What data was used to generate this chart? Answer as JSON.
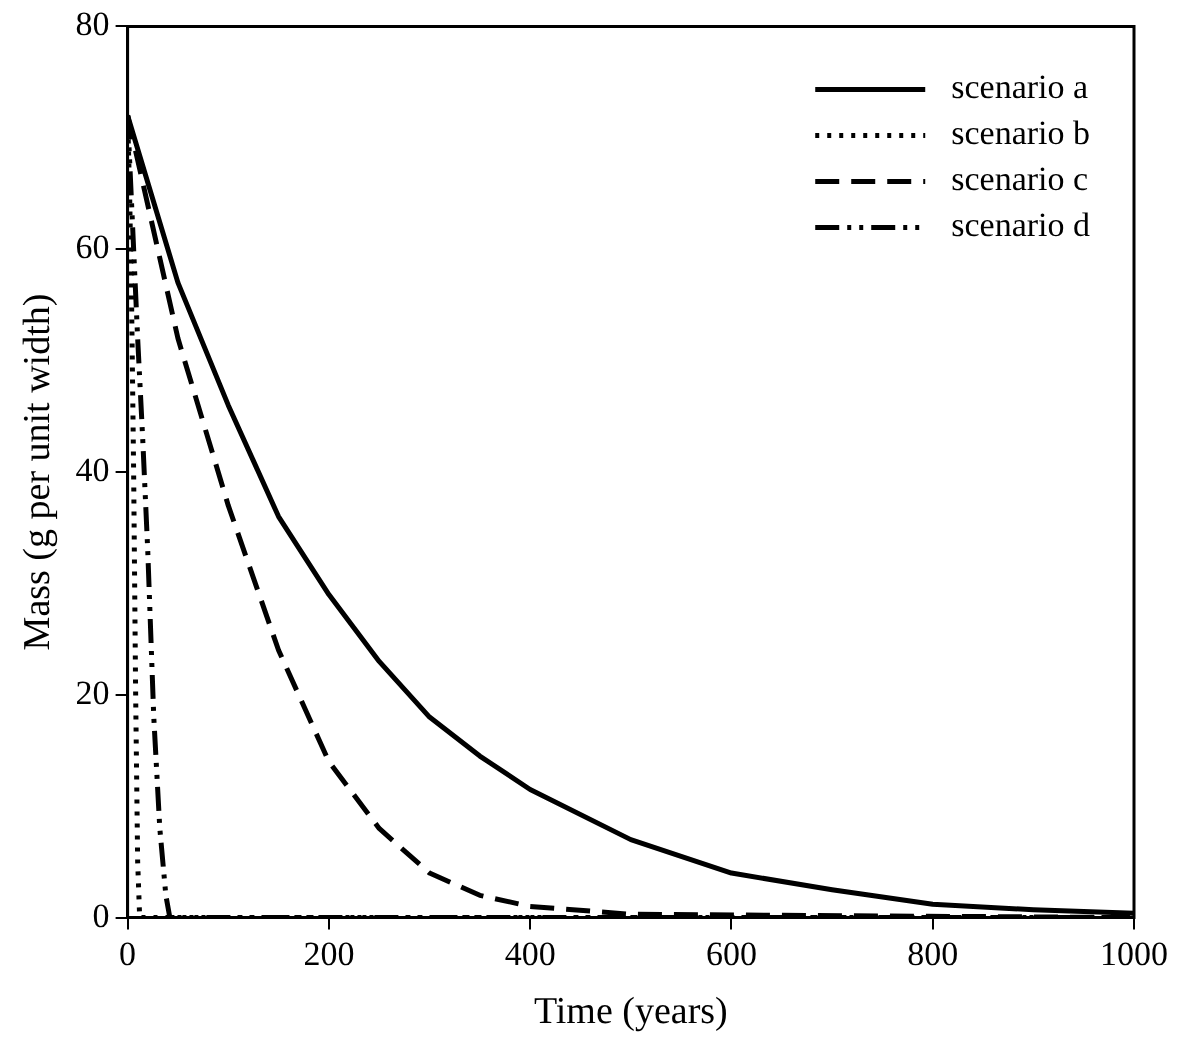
{
  "chart_data": {
    "type": "line",
    "xlabel": "Time (years)",
    "ylabel": "Mass (g per unit width)",
    "xlim": [
      0,
      1000
    ],
    "xticks": [
      0,
      200,
      400,
      600,
      800,
      1000
    ],
    "ylim": [
      0,
      80
    ],
    "yticks": [
      0,
      20,
      40,
      60,
      80
    ],
    "grid": false,
    "legend": "top right",
    "marker": "none",
    "series": [
      {
        "name": "scenario a",
        "color": "#000000",
        "line_style": "solid",
        "x": [
          0,
          50,
          100,
          150,
          200,
          250,
          300,
          350,
          400,
          500,
          600,
          700,
          800,
          900,
          1000
        ],
        "values": [
          72,
          57,
          46,
          36,
          29,
          23,
          18,
          14.5,
          11.5,
          7,
          4,
          2.5,
          1.2,
          0.7,
          0.4
        ]
      },
      {
        "name": "scenario b",
        "color": "#000000",
        "line_style": "dotted",
        "x": [
          0,
          2,
          4,
          6,
          8,
          10,
          12,
          1000
        ],
        "values": [
          72,
          65,
          55,
          40,
          20,
          5,
          0,
          0
        ]
      },
      {
        "name": "scenario c",
        "color": "#000000",
        "line_style": "dashed",
        "x": [
          0,
          25,
          50,
          100,
          150,
          200,
          250,
          300,
          350,
          400,
          500,
          1000
        ],
        "values": [
          72,
          62,
          52,
          37,
          24,
          14,
          8,
          4,
          2,
          1,
          0.3,
          0
        ]
      },
      {
        "name": "scenario d",
        "color": "#000000",
        "line_style": "dashdotdot",
        "x": [
          0,
          5,
          10,
          15,
          20,
          26,
          32,
          38,
          42,
          1000
        ],
        "values": [
          72,
          62,
          52,
          43,
          33,
          18,
          8,
          2,
          0,
          0
        ]
      }
    ]
  }
}
